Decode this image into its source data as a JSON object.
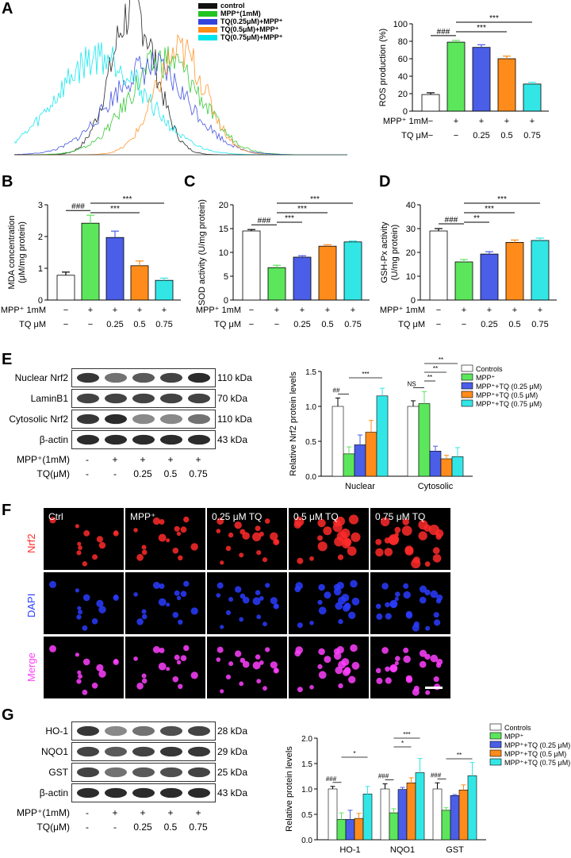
{
  "panels": {
    "A": "A",
    "B": "B",
    "C": "C",
    "D": "D",
    "E": "E",
    "F": "F",
    "G": "G"
  },
  "flow_legend": [
    "control",
    "MPP⁺(1mM)",
    "TQ(0.25μM)+MPP⁺",
    "TQ(0.5μM)+MPP⁺",
    "TQ(0.75μM)+MPP⁺"
  ],
  "colors": {
    "control": "#ffffff",
    "mpp": "#5ce65c",
    "tq025": "#4a5ee8",
    "tq05": "#ff8c1a",
    "tq075": "#33e6e6",
    "control_line": "#111111",
    "flow_mpp": "#22c422",
    "flow_tq025": "#3344dd",
    "flow_tq05": "#ff8c1a",
    "flow_tq075": "#00e5ee"
  },
  "treatment_rows": {
    "mpp_label": "MPP⁺ 1mM",
    "tq_label": "TQ μM",
    "mpp_marks": [
      "−",
      "+",
      "+",
      "+",
      "+"
    ],
    "tq_marks": [
      "−",
      "−",
      "0.25",
      "0.5",
      "0.75"
    ]
  },
  "blot_rows": {
    "mpp_label": "MPP⁺(1mM)",
    "tq_label": "TQ(μM)",
    "mpp_marks": [
      "-",
      "+",
      "+",
      "+",
      "+"
    ],
    "tq_marks": [
      "-",
      "-",
      "0.25",
      "0.5",
      "0.75"
    ]
  },
  "chart_data": [
    {
      "panel": "A",
      "type": "bar",
      "ylabel": "ROS production (%)",
      "ylim": [
        0,
        100
      ],
      "yticks": [
        0,
        20,
        40,
        60,
        80,
        100
      ],
      "values": [
        19,
        79,
        73,
        60,
        31
      ],
      "errors": [
        2,
        2,
        3,
        3,
        2
      ],
      "sig": [
        {
          "from": 0,
          "to": 1,
          "label": "###"
        },
        {
          "from": 1,
          "to": 3,
          "label": "***"
        },
        {
          "from": 1,
          "to": 4,
          "label": "***"
        }
      ]
    },
    {
      "panel": "B",
      "type": "bar",
      "ylabel": "MDA concentration",
      "ylabel2": "(μM/mg protein)",
      "ylim": [
        0,
        3
      ],
      "yticks": [
        0,
        1,
        2,
        3
      ],
      "values": [
        0.78,
        2.42,
        1.97,
        1.08,
        0.62
      ],
      "errors": [
        0.1,
        0.25,
        0.2,
        0.15,
        0.07
      ],
      "sig": [
        {
          "from": 0,
          "to": 1,
          "label": "###"
        },
        {
          "from": 1,
          "to": 3,
          "label": "***"
        },
        {
          "from": 1,
          "to": 4,
          "label": "***"
        }
      ]
    },
    {
      "panel": "C",
      "type": "bar",
      "ylabel": "SOD activity (U/mg protein)",
      "ylim": [
        0,
        20
      ],
      "yticks": [
        0,
        5,
        10,
        15,
        20
      ],
      "values": [
        14.5,
        6.8,
        9.0,
        11.3,
        12.2
      ],
      "errors": [
        0.3,
        0.5,
        0.3,
        0.3,
        0.2
      ],
      "sig": [
        {
          "from": 0,
          "to": 1,
          "label": "###"
        },
        {
          "from": 1,
          "to": 2,
          "label": "***"
        },
        {
          "from": 1,
          "to": 3,
          "label": "***"
        },
        {
          "from": 1,
          "to": 4,
          "label": "***"
        }
      ]
    },
    {
      "panel": "D",
      "type": "bar",
      "ylabel": "GSH-Px activity",
      "ylabel2": "(U/mg protein)",
      "ylim": [
        0,
        40
      ],
      "yticks": [
        0,
        10,
        20,
        30,
        40
      ],
      "values": [
        29,
        16,
        19.3,
        24.2,
        25
      ],
      "errors": [
        1,
        1,
        1,
        1,
        1
      ],
      "sig": [
        {
          "from": 0,
          "to": 1,
          "label": "###"
        },
        {
          "from": 1,
          "to": 2,
          "label": "**"
        },
        {
          "from": 1,
          "to": 3,
          "label": "***"
        },
        {
          "from": 1,
          "to": 4,
          "label": "***"
        }
      ]
    },
    {
      "panel": "E",
      "type": "bar",
      "ylabel": "Relative  Nrf2 protein levels",
      "ylim": [
        0,
        1.5
      ],
      "yticks": [
        0.0,
        0.5,
        1.0,
        1.5
      ],
      "categories": [
        "Nuclear",
        "Cytosolic"
      ],
      "series": [
        {
          "name": "Controls",
          "values": [
            1.0,
            1.0
          ],
          "errors": [
            0.12,
            0.08
          ]
        },
        {
          "name": "MPP⁺",
          "values": [
            0.32,
            1.04
          ],
          "errors": [
            0.1,
            0.17
          ]
        },
        {
          "name": "MPP⁺+TQ (0.25 μM)",
          "values": [
            0.45,
            0.36
          ],
          "errors": [
            0.14,
            0.07
          ]
        },
        {
          "name": "MPP⁺+TQ (0.5 μM)",
          "values": [
            0.63,
            0.25
          ],
          "errors": [
            0.17,
            0.05
          ]
        },
        {
          "name": "MPP⁺+TQ (0.75 μM)",
          "values": [
            1.15,
            0.28
          ],
          "errors": [
            0.11,
            0.13
          ]
        }
      ],
      "sig": [
        {
          "group": 0,
          "from": 0,
          "to": 1,
          "label": "##"
        },
        {
          "group": 0,
          "from": 1,
          "to": 4,
          "label": "***"
        },
        {
          "group": 1,
          "from": 0,
          "to": 1,
          "label": "NS"
        },
        {
          "group": 1,
          "from": 1,
          "to": 2,
          "label": "**"
        },
        {
          "group": 1,
          "from": 1,
          "to": 3,
          "label": "**"
        },
        {
          "group": 1,
          "from": 1,
          "to": 4,
          "label": "**"
        }
      ]
    },
    {
      "panel": "G",
      "type": "bar",
      "ylabel": "Relative  protein levels",
      "ylim": [
        0,
        2.0
      ],
      "yticks": [
        0.0,
        0.5,
        1.0,
        1.5,
        2.0
      ],
      "categories": [
        "HO-1",
        "NQO1",
        "GST"
      ],
      "series": [
        {
          "name": "Controls",
          "values": [
            1.0,
            1.0,
            1.0
          ],
          "errors": [
            0.05,
            0.1,
            0.12
          ]
        },
        {
          "name": "MPP⁺",
          "values": [
            0.4,
            0.53,
            0.58
          ],
          "errors": [
            0.13,
            0.08,
            0.05
          ]
        },
        {
          "name": "MPP⁺+TQ (0.25 μM)",
          "values": [
            0.4,
            0.99,
            0.87
          ],
          "errors": [
            0.18,
            0.04,
            0.02
          ]
        },
        {
          "name": "MPP⁺+TQ (0.5 μM)",
          "values": [
            0.42,
            1.12,
            0.98
          ],
          "errors": [
            0.1,
            0.1,
            0.1
          ]
        },
        {
          "name": "MPP⁺+TQ (0.75 μM)",
          "values": [
            0.9,
            1.32,
            1.26
          ],
          "errors": [
            0.15,
            0.28,
            0.26
          ]
        }
      ],
      "sig": [
        {
          "group": 0,
          "from": 0,
          "to": 1,
          "label": "###"
        },
        {
          "group": 0,
          "from": 1,
          "to": 4,
          "label": "*"
        },
        {
          "group": 1,
          "from": 0,
          "to": 1,
          "label": "###"
        },
        {
          "group": 1,
          "from": 1,
          "to": 3,
          "label": "*"
        },
        {
          "group": 1,
          "from": 1,
          "to": 4,
          "label": "***"
        },
        {
          "group": 2,
          "from": 0,
          "to": 1,
          "label": "###"
        },
        {
          "group": 2,
          "from": 1,
          "to": 4,
          "label": "**"
        }
      ]
    }
  ],
  "blot_E": {
    "rows": [
      {
        "name": "Nuclear Nrf2",
        "kda": "110 kDa"
      },
      {
        "name": "LaminB1",
        "kda": "70 kDa"
      },
      {
        "name": "Cytosolic Nrf2",
        "kda": "110 kDa"
      },
      {
        "name": "β-actin",
        "kda": "43 kDa"
      }
    ]
  },
  "blot_G": {
    "rows": [
      {
        "name": "HO-1",
        "kda": "28 kDa"
      },
      {
        "name": "NQO1",
        "kda": "29 kDa"
      },
      {
        "name": "GST",
        "kda": "25 kDa"
      },
      {
        "name": "β-actin",
        "kda": "43 kDa"
      }
    ]
  },
  "micrograph": {
    "columns": [
      "Ctrl",
      "MPP⁺",
      "0.25 μM TQ",
      "0.5 μM TQ",
      "0.75 μM TQ"
    ],
    "rows": [
      "Nrf2",
      "DAPI",
      "Merge"
    ],
    "row_colors": [
      "#ff2a2a",
      "#2a3cff",
      "#ff40ff"
    ]
  }
}
